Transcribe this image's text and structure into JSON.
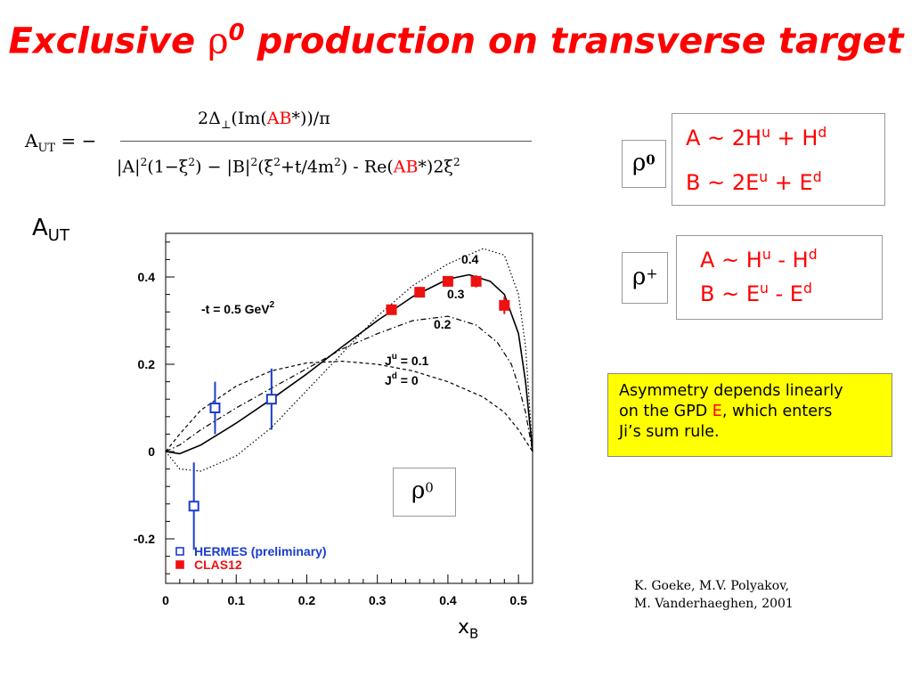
{
  "slide": {
    "title_main": "Exclusive ",
    "title_rho": "ρ",
    "title_sup": "0",
    "title_rest": " production on transverse target"
  },
  "formula": {
    "lhs_a": "A",
    "lhs_sub": "UT",
    "lhs_eq": " = −",
    "num_pre": "2Δ",
    "num_sub": "⊥",
    "num_mid": "(Im(",
    "num_ab": "AB",
    "num_post": "*))/π",
    "den_1": "|A|",
    "den_2": "(1−ξ",
    "den_3": ") − |B|",
    "den_4": "(ξ",
    "den_5": "+t/4m",
    "den_6": ") - Re(",
    "den_ab": "AB",
    "den_7": "*)2ξ",
    "sq": "2"
  },
  "rho0_panel": {
    "symbol": "ρ",
    "sup": "0",
    "line1_a": "A ~  2H",
    "line1_u": "u",
    "line1_b": " + H",
    "line1_d": "d",
    "line2_a": "B ~  2E",
    "line2_u": "u",
    "line2_b": " + E",
    "line2_d": "d"
  },
  "rhoplus_panel": {
    "symbol": "ρ",
    "sup": "+",
    "line1_a": "A ~  H",
    "line1_u": "u",
    "line1_b": " - H",
    "line1_d": "d",
    "line2_a": "B ~  E",
    "line2_u": "u",
    "line2_b": " - E",
    "line2_d": "d"
  },
  "note": {
    "line1": "Asymmetry depends linearly",
    "line2_a": "on the GPD ",
    "line2_e": "E",
    "line2_b": ", which enters",
    "line3": "Ji’s sum rule."
  },
  "reference": {
    "line1": "K. Goeke, M.V. Polyakov,",
    "line2": "M. Vanderhaeghen, 2001"
  },
  "axis_text": {
    "ylabel_a": "A",
    "ylabel_sub": "UT",
    "xlabel_a": "x",
    "xlabel_sub": "B"
  },
  "chart_data": {
    "type": "scatter",
    "xlim": [
      0,
      0.52
    ],
    "ylim": [
      -0.29,
      0.49
    ],
    "xticks": [
      "0",
      "0.1",
      "0.2",
      "0.3",
      "0.4",
      "0.5"
    ],
    "xtick_values": [
      0,
      0.1,
      0.2,
      0.3,
      0.4,
      0.5
    ],
    "yticks": [
      "-0.2",
      "0",
      "0.2",
      "0.4"
    ],
    "ytick_values": [
      -0.2,
      0,
      0.2,
      0.4
    ],
    "annotations": {
      "t_value": "-t = 0.5 GeV",
      "t_sup": "2",
      "ju_a": "J",
      "ju_sup": "u",
      "ju_b": " = 0.1",
      "jd_a": "J",
      "jd_sup": "d",
      "jd_b": " = 0",
      "curve_04": "0.4",
      "curve_03": "0.3",
      "curve_02": "0.2",
      "inset_symbol": "ρ",
      "inset_sup": "0"
    },
    "curves": [
      {
        "label": "0.4",
        "style": "solid",
        "x": [
          0,
          0.02,
          0.05,
          0.1,
          0.15,
          0.2,
          0.25,
          0.3,
          0.35,
          0.4,
          0.43,
          0.46,
          0.48,
          0.5,
          0.51,
          0.52
        ],
        "y": [
          0,
          -0.005,
          0.015,
          0.065,
          0.12,
          0.178,
          0.24,
          0.3,
          0.355,
          0.395,
          0.405,
          0.39,
          0.36,
          0.27,
          0.16,
          0
        ]
      },
      {
        "label": "0.3",
        "style": "dashdot",
        "x": [
          0,
          0.02,
          0.05,
          0.1,
          0.15,
          0.2,
          0.25,
          0.3,
          0.35,
          0.4,
          0.44,
          0.47,
          0.49,
          0.5,
          0.51,
          0.52
        ],
        "y": [
          0,
          0.015,
          0.05,
          0.1,
          0.145,
          0.19,
          0.235,
          0.27,
          0.3,
          0.31,
          0.29,
          0.25,
          0.2,
          0.15,
          0.09,
          0
        ]
      },
      {
        "label": "0.2",
        "style": "dashed",
        "x": [
          0,
          0.02,
          0.05,
          0.1,
          0.15,
          0.2,
          0.25,
          0.3,
          0.35,
          0.4,
          0.45,
          0.48,
          0.5,
          0.51,
          0.52
        ],
        "y": [
          0,
          0.04,
          0.095,
          0.15,
          0.185,
          0.203,
          0.207,
          0.2,
          0.185,
          0.16,
          0.125,
          0.09,
          0.05,
          0.025,
          0
        ]
      },
      {
        "label": "",
        "style": "dotted",
        "x": [
          0,
          0.02,
          0.05,
          0.1,
          0.15,
          0.2,
          0.25,
          0.3,
          0.35,
          0.4,
          0.45,
          0.48,
          0.5,
          0.51,
          0.52
        ],
        "y": [
          0,
          -0.04,
          -0.045,
          -0.01,
          0.055,
          0.14,
          0.225,
          0.31,
          0.38,
          0.43,
          0.465,
          0.45,
          0.36,
          0.24,
          0
        ]
      }
    ],
    "series": [
      {
        "name": "HERMES (preliminary)",
        "color": "#1a3ccc",
        "marker": "open-square",
        "x": [
          0.04,
          0.07,
          0.15
        ],
        "y": [
          -0.125,
          0.1,
          0.12
        ],
        "err": [
          0.1,
          0.06,
          0.07
        ]
      },
      {
        "name": "CLAS12",
        "color": "#ee1111",
        "marker": "filled-square",
        "x": [
          0.32,
          0.36,
          0.4,
          0.44,
          0.48
        ],
        "y": [
          0.325,
          0.365,
          0.39,
          0.39,
          0.335
        ],
        "err": [
          0.01,
          0.012,
          0.012,
          0.014,
          0.02
        ]
      }
    ],
    "legend_position": "bottom-left"
  }
}
